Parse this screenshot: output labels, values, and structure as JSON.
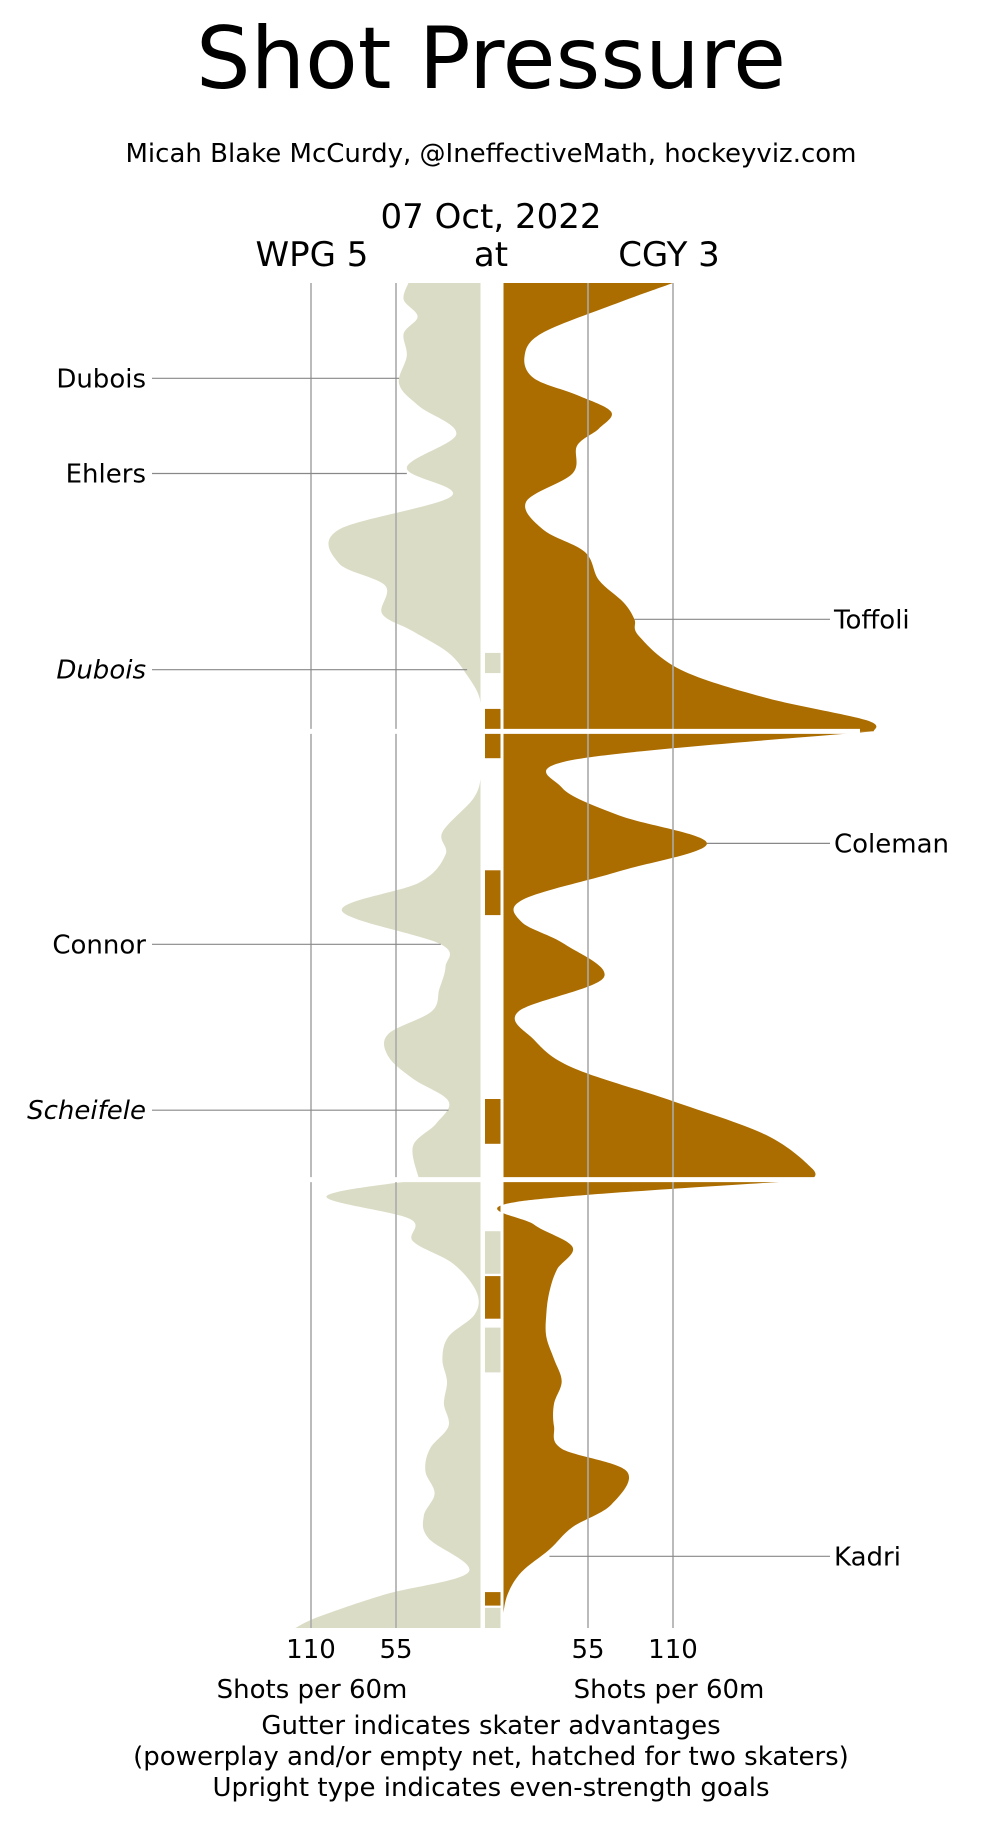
{
  "chart_data": {
    "type": "area",
    "title": "Shot Pressure",
    "subtitle": "Micah Blake McCurdy, @IneffectiveMath, hockeyviz.com",
    "date": "07 Oct, 2022",
    "away_team": "WPG 5",
    "connector": "at",
    "home_team": "CGY 3",
    "periods": 3,
    "x_ticks": [
      "110",
      "55"
    ],
    "x_tick_values": [
      110,
      55
    ],
    "xlabel_left": "Shots per 60m",
    "xlabel_right": "Shots per 60m",
    "footnotes": [
      "Gutter indicates skater advantages",
      "(powerplay and/or empty net, hatched for two skaters)",
      "Upright type indicates even-strength goals"
    ],
    "colors": {
      "away": "#DBDCC6",
      "home": "#AC6D00",
      "grid": "#AAAAAA",
      "leader": "#888888"
    },
    "series": [
      {
        "team": "WPG",
        "side": "left",
        "values": [
          [
            0.0,
            47
          ],
          [
            0.75,
            50
          ],
          [
            1.5,
            41
          ],
          [
            2.25,
            50
          ],
          [
            3.25,
            48
          ],
          [
            4.5,
            53
          ],
          [
            5.5,
            40
          ],
          [
            6.75,
            16
          ],
          [
            8.25,
            48
          ],
          [
            9.5,
            19
          ],
          [
            11.0,
            92
          ],
          [
            12.5,
            92
          ],
          [
            13.5,
            62
          ],
          [
            14.75,
            64
          ],
          [
            15.5,
            45
          ],
          [
            16.5,
            21
          ],
          [
            17.5,
            9
          ],
          [
            18.5,
            1
          ],
          [
            19.7,
            0
          ],
          [
            20.0,
            0
          ],
          [
            21.0,
            0
          ],
          [
            22.0,
            0
          ],
          [
            23.0,
            5
          ],
          [
            24.5,
            25
          ],
          [
            25.5,
            23
          ],
          [
            26.75,
            40
          ],
          [
            28.0,
            90
          ],
          [
            29.5,
            26
          ],
          [
            30.5,
            23
          ],
          [
            31.5,
            27
          ],
          [
            32.5,
            32
          ],
          [
            33.5,
            60
          ],
          [
            34.5,
            60
          ],
          [
            35.5,
            44
          ],
          [
            36.5,
            21
          ],
          [
            37.5,
            29
          ],
          [
            38.5,
            44
          ],
          [
            40.0,
            40
          ],
          [
            40.0,
            120
          ],
          [
            40.75,
            100
          ],
          [
            41.75,
            46
          ],
          [
            42.75,
            44
          ],
          [
            43.75,
            18
          ],
          [
            45.0,
            3
          ],
          [
            46.0,
            4
          ],
          [
            47.0,
            21
          ],
          [
            48.0,
            25
          ],
          [
            49.0,
            22
          ],
          [
            50.0,
            24
          ],
          [
            51.0,
            21
          ],
          [
            52.0,
            33
          ],
          [
            53.0,
            36
          ],
          [
            54.0,
            30
          ],
          [
            55.0,
            37
          ],
          [
            56.0,
            34
          ],
          [
            57.5,
            8
          ],
          [
            58.5,
            62
          ],
          [
            59.5,
            105
          ],
          [
            60.0,
            120
          ]
        ],
        "goals": [
          {
            "name": "Dubois",
            "time": 4.25,
            "even_strength": true
          },
          {
            "name": "Ehlers",
            "time": 8.5,
            "even_strength": true
          },
          {
            "name": "Dubois",
            "time": 17.25,
            "even_strength": false
          },
          {
            "name": "Connor",
            "time": 29.5,
            "even_strength": true
          },
          {
            "name": "Scheifele",
            "time": 36.9,
            "even_strength": false
          }
        ]
      },
      {
        "team": "CGY",
        "side": "right",
        "values": [
          [
            0.0,
            110
          ],
          [
            1.0,
            70
          ],
          [
            2.25,
            25
          ],
          [
            3.25,
            14
          ],
          [
            4.25,
            20
          ],
          [
            5.0,
            48
          ],
          [
            5.75,
            70
          ],
          [
            6.5,
            62
          ],
          [
            7.25,
            48
          ],
          [
            8.5,
            45
          ],
          [
            9.75,
            15
          ],
          [
            11.0,
            26
          ],
          [
            12.0,
            53
          ],
          [
            13.25,
            62
          ],
          [
            14.25,
            78
          ],
          [
            15.0,
            85
          ],
          [
            15.75,
            88
          ],
          [
            17.25,
            115
          ],
          [
            18.5,
            170
          ],
          [
            19.5,
            235
          ],
          [
            20.0,
            240
          ],
          [
            20.0,
            55
          ],
          [
            21.25,
            47
          ],
          [
            22.5,
            38
          ],
          [
            23.75,
            75
          ],
          [
            25.0,
            132
          ],
          [
            26.25,
            75
          ],
          [
            27.5,
            13
          ],
          [
            28.5,
            12
          ],
          [
            29.5,
            40
          ],
          [
            31.0,
            65
          ],
          [
            32.5,
            10
          ],
          [
            33.75,
            20
          ],
          [
            35.0,
            45
          ],
          [
            36.5,
            110
          ],
          [
            38.0,
            170
          ],
          [
            39.5,
            200
          ],
          [
            40.0,
            200
          ],
          [
            40.0,
            50
          ],
          [
            41.0,
            8
          ],
          [
            42.0,
            20
          ],
          [
            43.0,
            45
          ],
          [
            44.0,
            35
          ],
          [
            45.0,
            30
          ],
          [
            46.0,
            28
          ],
          [
            47.0,
            28
          ],
          [
            48.0,
            33
          ],
          [
            49.0,
            38
          ],
          [
            50.0,
            33
          ],
          [
            51.0,
            33
          ],
          [
            52.0,
            38
          ],
          [
            53.0,
            80
          ],
          [
            54.5,
            70
          ],
          [
            55.5,
            45
          ],
          [
            56.5,
            30
          ],
          [
            57.5,
            12
          ],
          [
            58.5,
            3
          ],
          [
            59.5,
            0
          ],
          [
            60.0,
            0
          ]
        ],
        "goals": [
          {
            "name": "Toffoli",
            "time": 15.0,
            "even_strength": true
          },
          {
            "name": "Coleman",
            "time": 25.0,
            "even_strength": true
          },
          {
            "name": "Kadri",
            "time": 56.8,
            "even_strength": true
          }
        ]
      }
    ],
    "advantages": [
      {
        "team": "WPG",
        "start": 16.5,
        "end": 17.4
      },
      {
        "team": "CGY",
        "start": 19.0,
        "end": 21.2
      },
      {
        "team": "CGY",
        "start": 26.2,
        "end": 28.2
      },
      {
        "team": "CGY",
        "start": 36.4,
        "end": 38.4
      },
      {
        "team": "WPG",
        "start": 42.3,
        "end": 44.2
      },
      {
        "team": "CGY",
        "start": 44.3,
        "end": 46.2
      },
      {
        "team": "WPG",
        "start": 46.6,
        "end": 48.6
      },
      {
        "team": "CGY",
        "start": 58.4,
        "end": 59.0
      },
      {
        "team": "WPG",
        "start": 59.1,
        "end": 60.0
      }
    ]
  }
}
